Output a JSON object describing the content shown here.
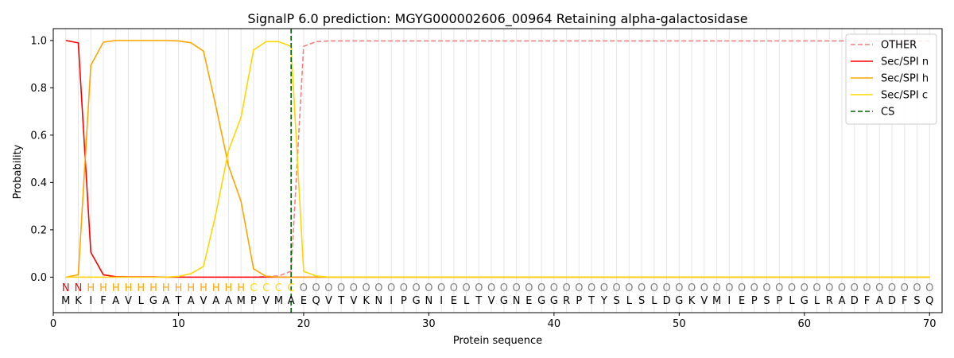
{
  "chart_data": {
    "type": "line",
    "title": "SignalP 6.0 prediction: MGYG000002606_00964 Retaining alpha-galactosidase",
    "xlabel": "Protein sequence",
    "ylabel": "Probability",
    "xlim": [
      0,
      71
    ],
    "ylim": [
      -0.15,
      1.05
    ],
    "xticks": [
      0,
      10,
      20,
      30,
      40,
      50,
      60,
      70
    ],
    "yticks": [
      0.0,
      0.2,
      0.4,
      0.6,
      0.8,
      1.0
    ],
    "xtick_labels": [
      "0",
      "10",
      "20",
      "30",
      "40",
      "50",
      "60",
      "70"
    ],
    "ytick_labels": [
      "0.0",
      "0.2",
      "0.4",
      "0.6",
      "0.8",
      "1.0"
    ],
    "sequence": [
      "M",
      "K",
      "I",
      "F",
      "A",
      "V",
      "L",
      "G",
      "A",
      "T",
      "A",
      "V",
      "A",
      "A",
      "M",
      "P",
      "V",
      "M",
      "A",
      "E",
      "Q",
      "V",
      "T",
      "V",
      "K",
      "N",
      "I",
      "P",
      "G",
      "N",
      "I",
      "E",
      "L",
      "T",
      "V",
      "G",
      "N",
      "E",
      "G",
      "G",
      "R",
      "P",
      "T",
      "Y",
      "S",
      "L",
      "S",
      "L",
      "D",
      "G",
      "K",
      "V",
      "M",
      "I",
      "E",
      "P",
      "S",
      "P",
      "L",
      "G",
      "L",
      "R",
      "A",
      "D",
      "F",
      "A",
      "D",
      "F",
      "S",
      "Q"
    ],
    "predicted_labels": [
      "N",
      "N",
      "H",
      "H",
      "H",
      "H",
      "H",
      "H",
      "H",
      "H",
      "H",
      "H",
      "H",
      "H",
      "H",
      "C",
      "C",
      "C",
      "C",
      "O",
      "O",
      "O",
      "O",
      "O",
      "O",
      "O",
      "O",
      "O",
      "O",
      "O",
      "O",
      "O",
      "O",
      "O",
      "O",
      "O",
      "O",
      "O",
      "O",
      "O",
      "O",
      "O",
      "O",
      "O",
      "O",
      "O",
      "O",
      "O",
      "O",
      "O",
      "O",
      "O",
      "O",
      "O",
      "O",
      "O",
      "O",
      "O",
      "O",
      "O",
      "O",
      "O",
      "O",
      "O",
      "O",
      "O",
      "O",
      "O",
      "O",
      "O"
    ],
    "label_colors": {
      "N": "#ff0000",
      "H": "#ffa500",
      "C": "#ffd700",
      "O": "#808080"
    },
    "series": [
      {
        "name": "OTHER",
        "color": "#f08080",
        "dash": true,
        "x": [
          1,
          2,
          3,
          4,
          5,
          6,
          7,
          8,
          9,
          10,
          11,
          12,
          13,
          14,
          15,
          16,
          17,
          18,
          19,
          20,
          21,
          22,
          23,
          24,
          25,
          26,
          27,
          28,
          29,
          30,
          31,
          32,
          33,
          34,
          35,
          36,
          37,
          38,
          39,
          40,
          41,
          42,
          43,
          44,
          45,
          46,
          47,
          48,
          49,
          50,
          51,
          52,
          53,
          54,
          55,
          56,
          57,
          58,
          59,
          60,
          61,
          62,
          63,
          64,
          65,
          66,
          67,
          68,
          69,
          70
        ],
        "values": [
          0.0,
          0.0,
          0.0,
          0.0,
          0.0,
          0.0,
          0.0,
          0.0,
          0.0,
          0.0,
          0.0,
          0.0,
          0.0,
          0.0,
          0.0,
          0.0,
          0.003,
          0.005,
          0.025,
          0.975,
          0.995,
          0.998,
          0.998,
          0.998,
          0.998,
          0.998,
          0.998,
          0.998,
          0.998,
          0.998,
          0.998,
          0.998,
          0.998,
          0.998,
          0.998,
          0.998,
          0.998,
          0.998,
          0.998,
          0.998,
          0.998,
          0.998,
          0.998,
          0.998,
          0.998,
          0.998,
          0.998,
          0.998,
          0.998,
          0.998,
          0.998,
          0.998,
          0.998,
          0.998,
          0.998,
          0.998,
          0.998,
          0.998,
          0.998,
          0.998,
          0.998,
          0.998,
          0.998,
          0.998,
          0.998,
          0.998,
          0.998,
          0.998,
          0.998,
          0.998
        ]
      },
      {
        "name": "Sec/SPI n",
        "color": "#ff0000",
        "dash": false,
        "x": [
          1,
          2,
          3,
          4,
          5,
          6,
          7,
          8,
          9,
          10,
          11,
          12,
          13,
          14,
          15,
          16,
          17,
          18,
          19,
          20,
          21,
          22,
          23,
          24,
          25,
          26,
          27,
          28,
          29,
          30,
          31,
          32,
          33,
          34,
          35,
          36,
          37,
          38,
          39,
          40,
          41,
          42,
          43,
          44,
          45,
          46,
          47,
          48,
          49,
          50,
          51,
          52,
          53,
          54,
          55,
          56,
          57,
          58,
          59,
          60,
          61,
          62,
          63,
          64,
          65,
          66,
          67,
          68,
          69,
          70
        ],
        "values": [
          1.0,
          0.99,
          0.105,
          0.01,
          0.002,
          0.001,
          0.001,
          0.001,
          0.0,
          0.0,
          0.0,
          0.0,
          0.0,
          0.0,
          0.0,
          0.0,
          0.0,
          0.0,
          0.0,
          0.0,
          0.0,
          0.0,
          0.0,
          0.0,
          0.0,
          0.0,
          0.0,
          0.0,
          0.0,
          0.0,
          0.0,
          0.0,
          0.0,
          0.0,
          0.0,
          0.0,
          0.0,
          0.0,
          0.0,
          0.0,
          0.0,
          0.0,
          0.0,
          0.0,
          0.0,
          0.0,
          0.0,
          0.0,
          0.0,
          0.0,
          0.0,
          0.0,
          0.0,
          0.0,
          0.0,
          0.0,
          0.0,
          0.0,
          0.0,
          0.0,
          0.0,
          0.0,
          0.0,
          0.0,
          0.0,
          0.0,
          0.0,
          0.0,
          0.0,
          0.0
        ]
      },
      {
        "name": "Sec/SPI h",
        "color": "#ffa500",
        "dash": false,
        "x": [
          1,
          2,
          3,
          4,
          5,
          6,
          7,
          8,
          9,
          10,
          11,
          12,
          13,
          14,
          15,
          16,
          17,
          18,
          19,
          20,
          21,
          22,
          23,
          24,
          25,
          26,
          27,
          28,
          29,
          30,
          31,
          32,
          33,
          34,
          35,
          36,
          37,
          38,
          39,
          40,
          41,
          42,
          43,
          44,
          45,
          46,
          47,
          48,
          49,
          50,
          51,
          52,
          53,
          54,
          55,
          56,
          57,
          58,
          59,
          60,
          61,
          62,
          63,
          64,
          65,
          66,
          67,
          68,
          69,
          70
        ],
        "values": [
          0.0,
          0.01,
          0.895,
          0.993,
          1.0,
          1.0,
          1.0,
          1.0,
          1.0,
          0.998,
          0.99,
          0.955,
          0.72,
          0.47,
          0.32,
          0.035,
          0.003,
          0.0,
          0.0,
          0.0,
          0.0,
          0.0,
          0.0,
          0.0,
          0.0,
          0.0,
          0.0,
          0.0,
          0.0,
          0.0,
          0.0,
          0.0,
          0.0,
          0.0,
          0.0,
          0.0,
          0.0,
          0.0,
          0.0,
          0.0,
          0.0,
          0.0,
          0.0,
          0.0,
          0.0,
          0.0,
          0.0,
          0.0,
          0.0,
          0.0,
          0.0,
          0.0,
          0.0,
          0.0,
          0.0,
          0.0,
          0.0,
          0.0,
          0.0,
          0.0,
          0.0,
          0.0,
          0.0,
          0.0,
          0.0,
          0.0,
          0.0,
          0.0,
          0.0,
          0.0
        ]
      },
      {
        "name": "Sec/SPI c",
        "color": "#ffd700",
        "dash": false,
        "x": [
          1,
          2,
          3,
          4,
          5,
          6,
          7,
          8,
          9,
          10,
          11,
          12,
          13,
          14,
          15,
          16,
          17,
          18,
          19,
          20,
          21,
          22,
          23,
          24,
          25,
          26,
          27,
          28,
          29,
          30,
          31,
          32,
          33,
          34,
          35,
          36,
          37,
          38,
          39,
          40,
          41,
          42,
          43,
          44,
          45,
          46,
          47,
          48,
          49,
          50,
          51,
          52,
          53,
          54,
          55,
          56,
          57,
          58,
          59,
          60,
          61,
          62,
          63,
          64,
          65,
          66,
          67,
          68,
          69,
          70
        ],
        "values": [
          0.0,
          0.0,
          0.0,
          0.0,
          0.0,
          0.0,
          0.0,
          0.0,
          0.0,
          0.003,
          0.015,
          0.045,
          0.27,
          0.535,
          0.675,
          0.96,
          0.995,
          0.995,
          0.975,
          0.025,
          0.005,
          0.0,
          0.0,
          0.0,
          0.0,
          0.0,
          0.0,
          0.0,
          0.0,
          0.0,
          0.0,
          0.0,
          0.0,
          0.0,
          0.0,
          0.0,
          0.0,
          0.0,
          0.0,
          0.0,
          0.0,
          0.0,
          0.0,
          0.0,
          0.0,
          0.0,
          0.0,
          0.0,
          0.0,
          0.0,
          0.0,
          0.0,
          0.0,
          0.0,
          0.0,
          0.0,
          0.0,
          0.0,
          0.0,
          0.0,
          0.0,
          0.0,
          0.0,
          0.0,
          0.0,
          0.0,
          0.0,
          0.0,
          0.0,
          0.0
        ]
      }
    ],
    "cleavage_site": {
      "name": "CS",
      "x": 19,
      "color": "#006400"
    },
    "legend": {
      "position": "top-right",
      "entries": [
        {
          "label": "OTHER",
          "color": "#f08080",
          "dash": true
        },
        {
          "label": "Sec/SPI n",
          "color": "#ff0000",
          "dash": false
        },
        {
          "label": "Sec/SPI h",
          "color": "#ffa500",
          "dash": false
        },
        {
          "label": "Sec/SPI c",
          "color": "#ffd700",
          "dash": false
        },
        {
          "label": "CS",
          "color": "#006400",
          "dash": true
        }
      ]
    },
    "grid": "vertical lines at each residue"
  }
}
